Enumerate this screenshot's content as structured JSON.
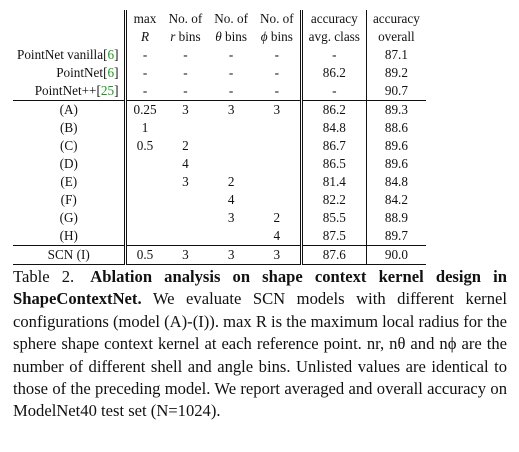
{
  "table": {
    "headers": [
      {
        "line1": "",
        "line2": ""
      },
      {
        "line1": "max",
        "line2": "R"
      },
      {
        "line1": "No. of",
        "line2": "r bins"
      },
      {
        "line1": "No. of",
        "line2": "θ bins"
      },
      {
        "line1": "No. of",
        "line2": "ϕ bins"
      },
      {
        "line1": "accuracy",
        "line2": "avg. class"
      },
      {
        "line1": "accuracy",
        "line2": "overall"
      }
    ],
    "baselines": [
      {
        "name": "PointNet vanilla",
        "cite": "6",
        "R": "-",
        "r": "-",
        "theta": "-",
        "phi": "-",
        "avg": "-",
        "overall": "87.1"
      },
      {
        "name": "PointNet",
        "cite": "6",
        "R": "-",
        "r": "-",
        "theta": "-",
        "phi": "-",
        "avg": "86.2",
        "overall": "89.2"
      },
      {
        "name": "PointNet++",
        "cite": "25",
        "R": "-",
        "r": "-",
        "theta": "-",
        "phi": "-",
        "avg": "-",
        "overall": "90.7"
      }
    ],
    "variants": [
      {
        "name": "(A)",
        "R": "0.25",
        "r": "3",
        "theta": "3",
        "phi": "3",
        "avg": "86.2",
        "overall": "89.3"
      },
      {
        "name": "(B)",
        "R": "1",
        "r": "",
        "theta": "",
        "phi": "",
        "avg": "84.8",
        "overall": "88.6"
      },
      {
        "name": "(C)",
        "R": "0.5",
        "r": "2",
        "theta": "",
        "phi": "",
        "avg": "86.7",
        "overall": "89.6"
      },
      {
        "name": "(D)",
        "R": "",
        "r": "4",
        "theta": "",
        "phi": "",
        "avg": "86.5",
        "overall": "89.6"
      },
      {
        "name": "(E)",
        "R": "",
        "r": "3",
        "theta": "2",
        "phi": "",
        "avg": "81.4",
        "overall": "84.8"
      },
      {
        "name": "(F)",
        "R": "",
        "r": "",
        "theta": "4",
        "phi": "",
        "avg": "82.2",
        "overall": "84.2"
      },
      {
        "name": "(G)",
        "R": "",
        "r": "",
        "theta": "3",
        "phi": "2",
        "avg": "85.5",
        "overall": "88.9"
      },
      {
        "name": "(H)",
        "R": "",
        "r": "",
        "theta": "",
        "phi": "4",
        "avg": "87.5",
        "overall": "89.7"
      }
    ],
    "final": {
      "name": "SCN (I)",
      "R": "0.5",
      "r": "3",
      "theta": "3",
      "phi": "3",
      "avg": "87.6",
      "overall": "90.0"
    }
  },
  "caption": {
    "label": "Table 2.",
    "title": "Ablation analysis on shape context kernel design in ShapeContextNet.",
    "body": "We evaluate SCN models with different kernel configurations (model (A)-(I)). max R is the maximum local radius for the sphere shape context kernel at each reference point. nr, nθ and nϕ are the number of different shell and angle bins. Unlisted values are identical to those of the preceding model. We report averaged and overall accuracy on ModelNet40 test set (N=1024)."
  }
}
